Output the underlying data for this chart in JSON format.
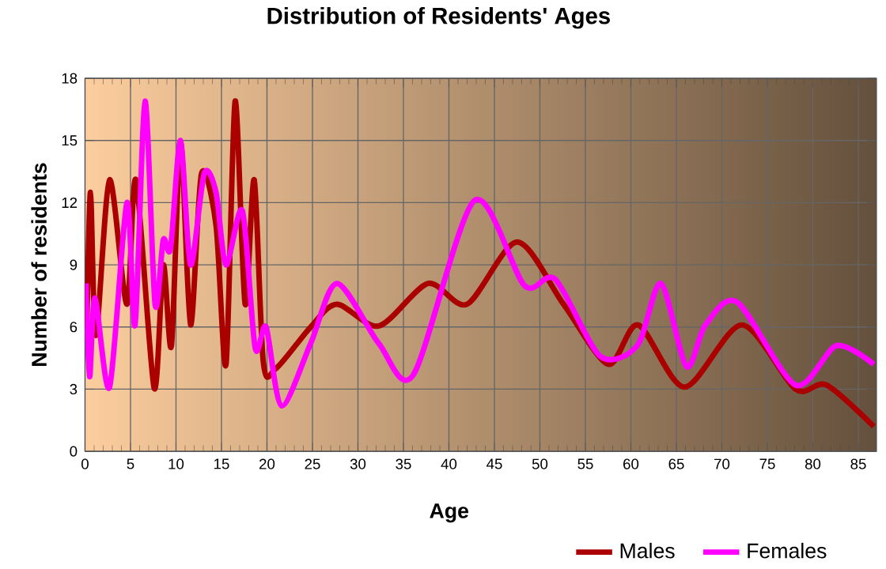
{
  "chart_data": {
    "type": "line",
    "title": "Distribution of Residents' Ages",
    "xlabel": "Age",
    "ylabel": "Number of residents",
    "xlim": [
      0,
      87
    ],
    "xticks": [
      0,
      5,
      10,
      15,
      20,
      25,
      30,
      35,
      40,
      45,
      50,
      55,
      60,
      65,
      70,
      75,
      80,
      85
    ],
    "ylim": [
      0,
      18
    ],
    "yticks": [
      0,
      3,
      6,
      9,
      12,
      15,
      18
    ],
    "grid": true,
    "legend": "bottom",
    "marker": "none",
    "line_style": "solid",
    "series": [
      {
        "name": "Males",
        "color": "#aa0000",
        "x": [
          0.2,
          0.6,
          1.2,
          2.7,
          4.6,
          5.6,
          7.6,
          8.6,
          9.5,
          10.5,
          11.6,
          12.8,
          14.4,
          15.5,
          16.5,
          17.6,
          18.6,
          19.6,
          21.0,
          24.8,
          27.7,
          32.3,
          37.7,
          42.0,
          47.5,
          52.6,
          57.5,
          60.8,
          65.9,
          72.2,
          78.1,
          81.5,
          86.7
        ],
        "values": [
          6.0,
          12.5,
          5.6,
          13.1,
          7.1,
          13.1,
          3.05,
          9.0,
          5.1,
          14.9,
          6.1,
          13.4,
          10.9,
          4.2,
          16.9,
          7.1,
          13.1,
          4.3,
          4.0,
          6.0,
          7.1,
          6.05,
          8.1,
          7.1,
          10.1,
          7.1,
          4.2,
          6.1,
          3.1,
          6.1,
          3.0,
          3.2,
          1.2
        ]
      },
      {
        "name": "Females",
        "color": "#ff00ff",
        "x": [
          0.1,
          0.5,
          1.1,
          2.7,
          4.6,
          5.5,
          6.6,
          7.7,
          8.6,
          9.4,
          10.5,
          11.6,
          13.1,
          14.4,
          15.5,
          17.3,
          18.7,
          19.9,
          21.6,
          24.8,
          27.7,
          32.3,
          36.1,
          42.8,
          48.3,
          51.7,
          56.6,
          60.7,
          63.3,
          66.1,
          68.2,
          71.7,
          78.1,
          82.6,
          86.7
        ],
        "values": [
          8.1,
          3.6,
          7.4,
          3.1,
          12.0,
          6.1,
          16.9,
          7.1,
          10.2,
          9.8,
          15.0,
          9.0,
          13.4,
          12.5,
          9.0,
          11.6,
          5.0,
          6.0,
          2.2,
          5.2,
          8.1,
          5.2,
          3.7,
          12.1,
          8.0,
          8.3,
          4.6,
          5.1,
          8.1,
          4.1,
          6.1,
          7.2,
          3.2,
          5.1,
          4.2
        ]
      }
    ]
  }
}
